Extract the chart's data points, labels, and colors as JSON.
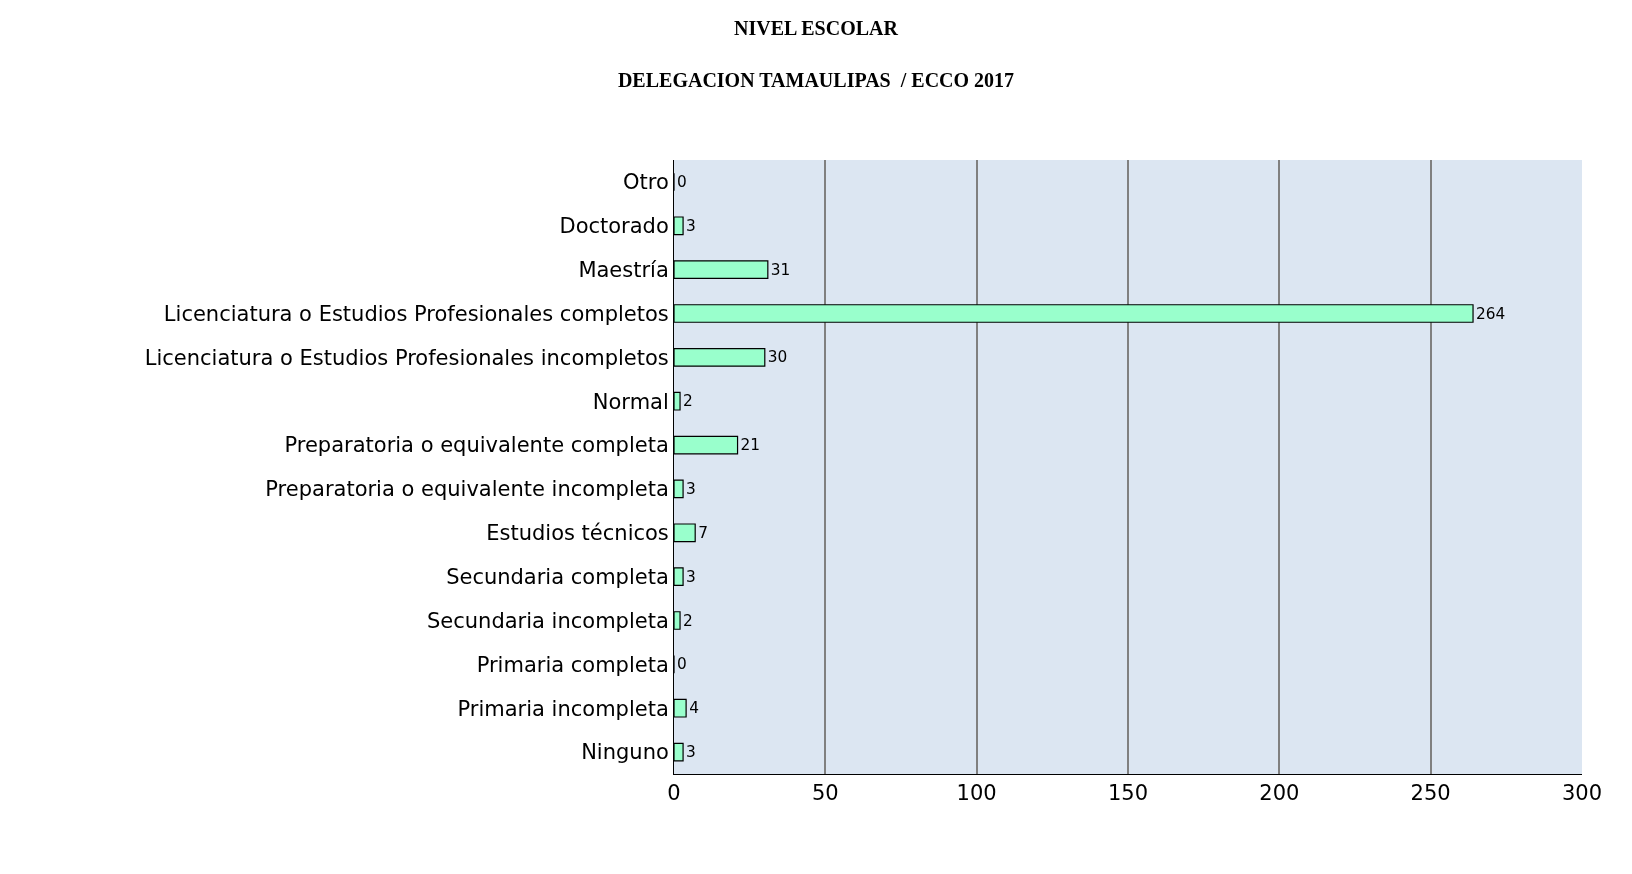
{
  "chart_data": {
    "type": "bar",
    "orientation": "horizontal",
    "title": "NIVEL ESCOLAR",
    "subtitle": "DELEGACION TAMAULIPAS  / ECCO 2017",
    "categories": [
      "Otro",
      "Doctorado",
      "Maestría",
      "Licenciatura o Estudios Profesionales completos",
      "Licenciatura o Estudios Profesionales incompletos",
      "Normal",
      "Preparatoria o equivalente completa",
      "Preparatoria o equivalente incompleta",
      "Estudios técnicos",
      "Secundaria completa",
      "Secundaria incompleta",
      "Primaria completa",
      "Primaria incompleta",
      "Ninguno"
    ],
    "values": [
      0,
      3,
      31,
      264,
      30,
      2,
      21,
      3,
      7,
      3,
      2,
      0,
      4,
      3
    ],
    "color": "#99ffcc",
    "xlim": [
      0,
      300
    ],
    "xticks": [
      0,
      50,
      100,
      150,
      200,
      250,
      300
    ],
    "grid": "x",
    "data_labels": true
  }
}
